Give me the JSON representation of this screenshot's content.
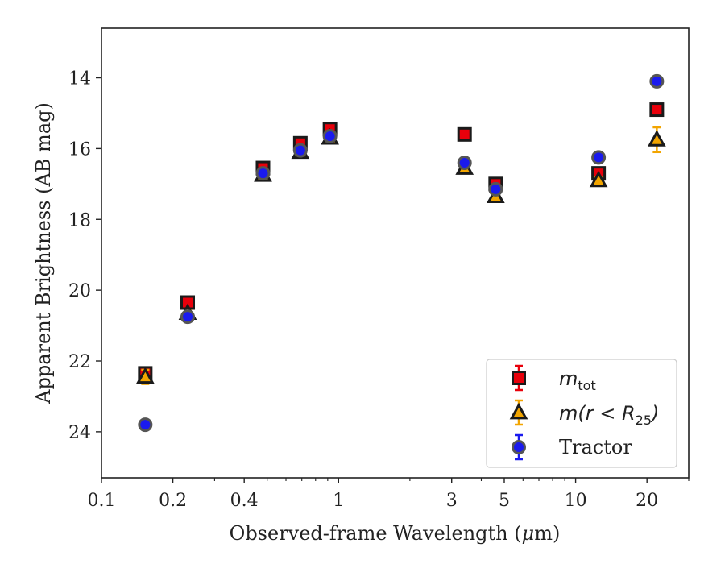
{
  "chart_data": {
    "type": "scatter",
    "title": "",
    "xlabel_prefix": "Observed-frame Wavelength (",
    "xlabel_mu": "μ",
    "xlabel_suffix": "m)",
    "ylabel": "Apparent Brightness (AB mag)",
    "x_scale": "log",
    "xlim": [
      0.1,
      30
    ],
    "ylim": [
      25.3,
      12.6
    ],
    "y_inverted": true,
    "x_major_ticks": [
      0.1,
      0.2,
      0.4,
      1,
      3,
      5,
      10,
      20
    ],
    "x_tick_labels": [
      "0.1",
      "0.2",
      "0.4",
      "1",
      "3",
      "5",
      "10",
      "20"
    ],
    "x_minor_ticks": [
      0.3,
      0.5,
      0.6,
      0.7,
      0.8,
      0.9,
      2,
      4,
      6,
      7,
      8,
      9,
      30
    ],
    "y_ticks": [
      14,
      16,
      18,
      20,
      22,
      24
    ],
    "y_tick_labels": [
      "14",
      "16",
      "18",
      "20",
      "22",
      "24"
    ],
    "grid": false,
    "legend_position": "lower-right",
    "series": [
      {
        "name": "m_tot",
        "marker": "square",
        "color": "#e8000b",
        "edge": "#1a1a1a",
        "errcolor": "#e8000b",
        "x": [
          0.153,
          0.231,
          0.48,
          0.69,
          0.92,
          3.4,
          4.6,
          12.5,
          22.0
        ],
        "y": [
          22.35,
          20.35,
          16.55,
          15.85,
          15.45,
          15.6,
          17.0,
          16.7,
          14.9
        ],
        "err": [
          0.15,
          0.1,
          0.05,
          0.05,
          0.05,
          0.05,
          0.05,
          0.1,
          0.1
        ]
      },
      {
        "name": "m(r < R25)",
        "marker": "triangle",
        "color": "#f2a500",
        "edge": "#1a1a1a",
        "errcolor": "#f2a500",
        "x": [
          0.153,
          0.231,
          0.48,
          0.69,
          0.92,
          3.4,
          4.6,
          12.5,
          22.0
        ],
        "y": [
          22.45,
          20.65,
          16.75,
          16.1,
          15.7,
          16.55,
          17.35,
          16.9,
          15.75
        ],
        "err": [
          0.2,
          0.1,
          0.05,
          0.05,
          0.05,
          0.05,
          0.05,
          0.1,
          0.35
        ]
      },
      {
        "name": "Tractor",
        "marker": "circle",
        "color": "#1a1aee",
        "edge": "#555555",
        "errcolor": "#1a1aee",
        "x": [
          0.153,
          0.231,
          0.48,
          0.69,
          0.92,
          3.4,
          4.6,
          12.5,
          22.0
        ],
        "y": [
          23.8,
          20.75,
          16.7,
          16.05,
          15.65,
          16.4,
          17.15,
          16.25,
          14.1
        ],
        "err": [
          0.05,
          0.05,
          0.02,
          0.02,
          0.02,
          0.02,
          0.02,
          0.05,
          0.05
        ]
      }
    ],
    "legend": {
      "mtot_base": "m",
      "mtot_sub": "tot",
      "mr_pre": "m(r < R",
      "mr_sub": "25",
      "mr_post": ")",
      "tractor": "Tractor"
    }
  }
}
